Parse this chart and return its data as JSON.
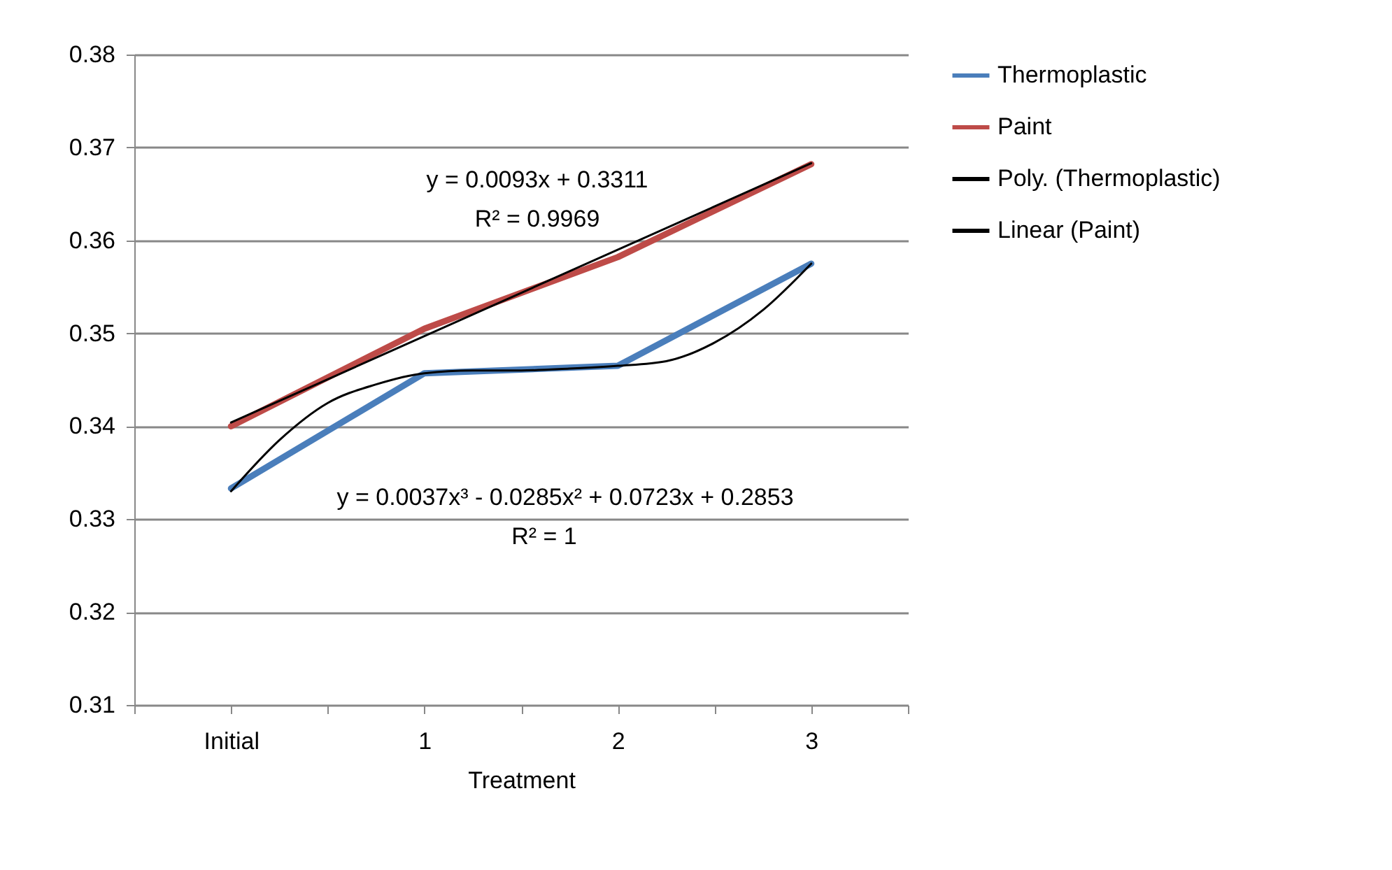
{
  "chart_data": {
    "type": "line",
    "xlabel": "Treatment",
    "x": [
      0,
      1,
      2,
      3
    ],
    "series": [
      {
        "name": "Thermoplastic",
        "color": "#4a7ebb",
        "values": [
          0.3333,
          0.3457,
          0.3465,
          0.3575
        ]
      },
      {
        "name": "Paint",
        "color": "#be4b48",
        "values": [
          0.34,
          0.3505,
          0.3582,
          0.3682
        ]
      },
      {
        "name": "Poly. (Thermoplastic)",
        "color": "#000000",
        "x": [
          0,
          0.25,
          0.5,
          0.75,
          1,
          1.25,
          1.5,
          1.75,
          2,
          2.25,
          2.5,
          2.75,
          3
        ],
        "values": [
          0.333,
          0.3385,
          0.3425,
          0.3445,
          0.3457,
          0.346,
          0.346,
          0.3462,
          0.3465,
          0.347,
          0.349,
          0.3525,
          0.3575
        ]
      },
      {
        "name": "Linear (Paint)",
        "color": "#000000",
        "x": [
          0,
          3
        ],
        "values": [
          0.3404,
          0.3683
        ]
      }
    ],
    "xlim": [
      -0.5,
      3.5
    ],
    "xticks": [
      {
        "value": -0.5,
        "label": null
      },
      {
        "value": 0,
        "label": "Initial"
      },
      {
        "value": 0.5,
        "label": null
      },
      1,
      {
        "value": 1.5,
        "label": null
      },
      2,
      {
        "value": 2.5,
        "label": null
      },
      3,
      {
        "value": 3.5,
        "label": null
      }
    ],
    "ylim": [
      0.31,
      0.38
    ],
    "yticks": [
      0.31,
      0.32,
      0.33,
      0.34,
      0.35,
      0.36,
      0.37,
      0.38
    ],
    "grid": "y",
    "legend": "right",
    "marker": "none",
    "annotations": [
      "y = 0.0093x + 0.3311",
      "R² = 0.9969",
      "y = 0.0037x³ - 0.0285x² + 0.0723x + 0.2853",
      "R² = 1"
    ]
  }
}
